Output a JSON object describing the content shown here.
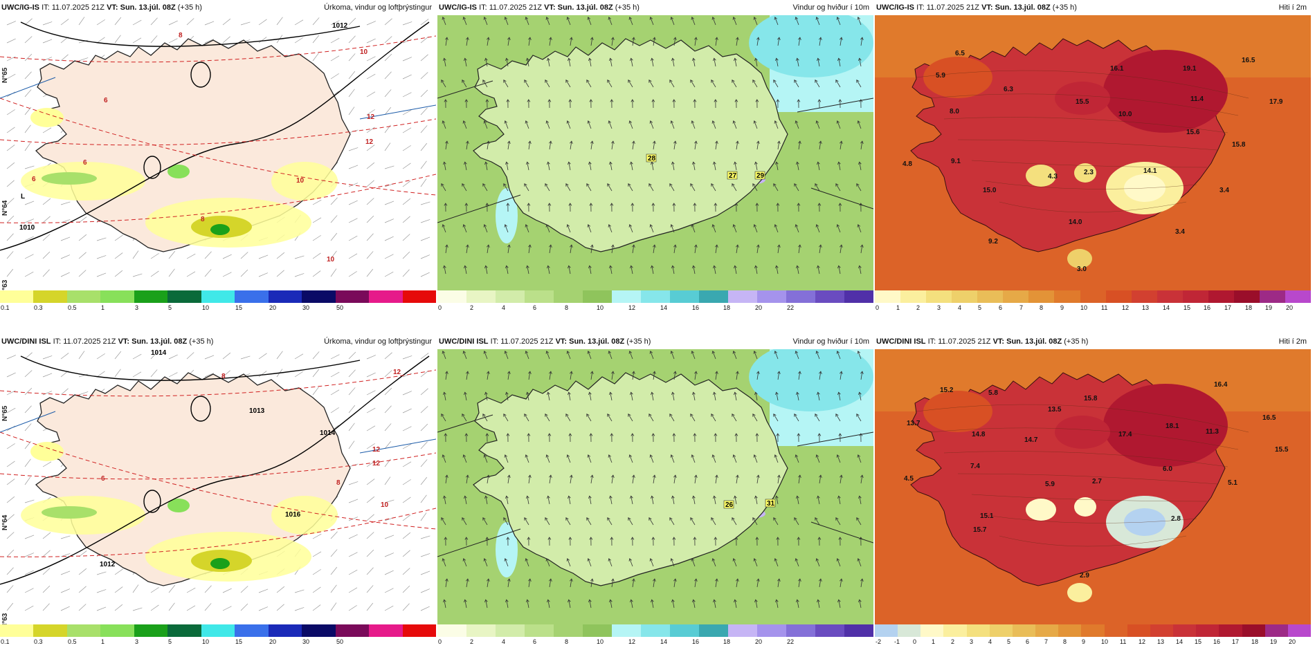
{
  "panels": [
    {
      "id": "r1c1",
      "model": "UWC/IG-IS",
      "it_label": "IT:",
      "it_value": "11.07.2025 21Z",
      "vt_label": "VT:",
      "vt_value": "Sun. 13.júl. 08Z",
      "lead": "(+35 h)",
      "product": "Úrkoma, vindur og loftþrýstingur",
      "kind": "precip",
      "colorbar": {
        "colors": [
          "#ffff99",
          "#d5d52a",
          "#a8e06a",
          "#88e05a",
          "#1aa01a",
          "#0a6a3a",
          "#40e8e8",
          "#3a70ea",
          "#1a2ab8",
          "#0a0a66",
          "#7a0a5a",
          "#e61a8a",
          "#e60a0a"
        ],
        "ticks": [
          "0.1",
          "0.3",
          "0.5",
          "1",
          "3",
          "5",
          "10",
          "15",
          "20",
          "30",
          "50"
        ]
      },
      "labels": [
        "8",
        "10",
        "1012",
        "6",
        "12",
        "10",
        "12",
        "6",
        "10",
        "6",
        "8",
        "1010",
        "L",
        "N°65",
        "N°64",
        "N°63"
      ]
    },
    {
      "id": "r1c2",
      "model": "UWC/IG-IS",
      "it_label": "IT:",
      "it_value": "11.07.2025 21Z",
      "vt_label": "VT:",
      "vt_value": "Sun. 13.júl. 08Z",
      "lead": "(+35 h)",
      "product": "Vindur og hviður í 10m",
      "kind": "wind",
      "colorbar": {
        "colors": [
          "#fbfde6",
          "#e8f5c4",
          "#d2ecaa",
          "#bbe08a",
          "#a5d271",
          "#8fc45c",
          "#b5f5f5",
          "#86e6ea",
          "#58ccd4",
          "#3aa8b0",
          "#c6b5f5",
          "#a593ec",
          "#8470d8",
          "#6a4cc0",
          "#5030a8"
        ],
        "ticks": [
          "0",
          "2",
          "4",
          "6",
          "8",
          "10",
          "12",
          "14",
          "16",
          "18",
          "20",
          "22"
        ]
      },
      "labels": [
        "28",
        "27",
        "29"
      ]
    },
    {
      "id": "r1c3",
      "model": "UWC/IG-IS",
      "it_label": "IT:",
      "it_value": "11.07.2025 21Z",
      "vt_label": "VT:",
      "vt_value": "Sun. 13.júl. 08Z",
      "lead": "(+35 h)",
      "product": "Hiti í 2m",
      "kind": "temp",
      "colorbar": {
        "colors": [
          "#fff9c8",
          "#fbef9e",
          "#f4e07e",
          "#eed06a",
          "#e9bd58",
          "#e6a947",
          "#e39337",
          "#e07a2c",
          "#dc6328",
          "#d85024",
          "#d24030",
          "#c93238",
          "#c02636",
          "#b01830",
          "#9a0e2a",
          "#9d2a86",
          "#b848cc"
        ],
        "ticks": [
          "0",
          "1",
          "2",
          "3",
          "4",
          "5",
          "6",
          "7",
          "8",
          "9",
          "10",
          "11",
          "12",
          "13",
          "14",
          "15",
          "16",
          "17",
          "18",
          "19",
          "20"
        ]
      },
      "labels": [
        "6.5",
        "5.9",
        "8.0",
        "6.3",
        "16.1",
        "15.5",
        "10.0",
        "19.1",
        "16.5",
        "11.4",
        "17.9",
        "15.6",
        "15.8",
        "9.1",
        "4.8",
        "4.3",
        "2.3",
        "14.1",
        "3.4",
        "15.0",
        "14.0",
        "9.2",
        "3.0",
        "3.4"
      ]
    },
    {
      "id": "r2c1",
      "model": "UWC/DINI ISL",
      "it_label": "IT:",
      "it_value": "11.07.2025 21Z",
      "vt_label": "VT:",
      "vt_value": "Sun. 13.júl. 08Z",
      "lead": "(+35 h)",
      "product": "Úrkoma, vindur og loftþrýstingur",
      "kind": "precip",
      "colorbar": {
        "colors": [
          "#ffff99",
          "#d5d52a",
          "#a8e06a",
          "#88e05a",
          "#1aa01a",
          "#0a6a3a",
          "#40e8e8",
          "#3a70ea",
          "#1a2ab8",
          "#0a0a66",
          "#7a0a5a",
          "#e61a8a",
          "#e60a0a"
        ],
        "ticks": [
          "0.1",
          "0.3",
          "0.5",
          "1",
          "3",
          "5",
          "10",
          "15",
          "20",
          "30",
          "50"
        ]
      },
      "labels": [
        "1014",
        "8",
        "12",
        "1013",
        "1014",
        "12",
        "12",
        "8",
        "10",
        "1016",
        "6",
        "1012",
        "N°65",
        "N°64",
        "N°63"
      ]
    },
    {
      "id": "r2c2",
      "model": "UWC/DINI ISL",
      "it_label": "IT:",
      "it_value": "11.07.2025 21Z",
      "vt_label": "VT:",
      "vt_value": "Sun. 13.júl. 08Z",
      "lead": "(+35 h)",
      "product": "Vindur og hviður í 10m",
      "kind": "wind",
      "colorbar": {
        "colors": [
          "#fbfde6",
          "#e8f5c4",
          "#d2ecaa",
          "#bbe08a",
          "#a5d271",
          "#8fc45c",
          "#b5f5f5",
          "#86e6ea",
          "#58ccd4",
          "#3aa8b0",
          "#c6b5f5",
          "#a593ec",
          "#8470d8",
          "#6a4cc0",
          "#5030a8"
        ],
        "ticks": [
          "0",
          "2",
          "4",
          "6",
          "8",
          "10",
          "12",
          "14",
          "16",
          "18",
          "20",
          "22"
        ]
      },
      "labels": [
        "26",
        "31"
      ]
    },
    {
      "id": "r2c3",
      "model": "UWC/DINI ISL",
      "it_label": "IT:",
      "it_value": "11.07.2025 21Z",
      "vt_label": "VT:",
      "vt_value": "Sun. 13.júl. 08Z",
      "lead": "(+35 h)",
      "product": "Hiti í 2m",
      "kind": "temp",
      "colorbar": {
        "colors": [
          "#b4d2f0",
          "#d8e8d8",
          "#fff9c8",
          "#fbef9e",
          "#f4e07e",
          "#eed06a",
          "#e9bd58",
          "#e6a947",
          "#e39337",
          "#e07a2c",
          "#dc6328",
          "#d85024",
          "#d24030",
          "#c93238",
          "#c02636",
          "#b01830",
          "#9a0e2a",
          "#9d2a86",
          "#b848cc"
        ],
        "ticks": [
          "-2",
          "-1",
          "0",
          "1",
          "2",
          "3",
          "4",
          "5",
          "6",
          "7",
          "8",
          "9",
          "10",
          "11",
          "12",
          "13",
          "14",
          "15",
          "16",
          "17",
          "18",
          "19",
          "20"
        ]
      },
      "labels": [
        "15.2",
        "5.8",
        "16.4",
        "13.7",
        "13.5",
        "15.8",
        "14.8",
        "14.7",
        "17.4",
        "18.1",
        "11.3",
        "16.5",
        "15.5",
        "7.4",
        "6.0",
        "4.5",
        "5.9",
        "2.7",
        "5.1",
        "15.1",
        "2.8",
        "15.7",
        "2.9"
      ]
    }
  ]
}
